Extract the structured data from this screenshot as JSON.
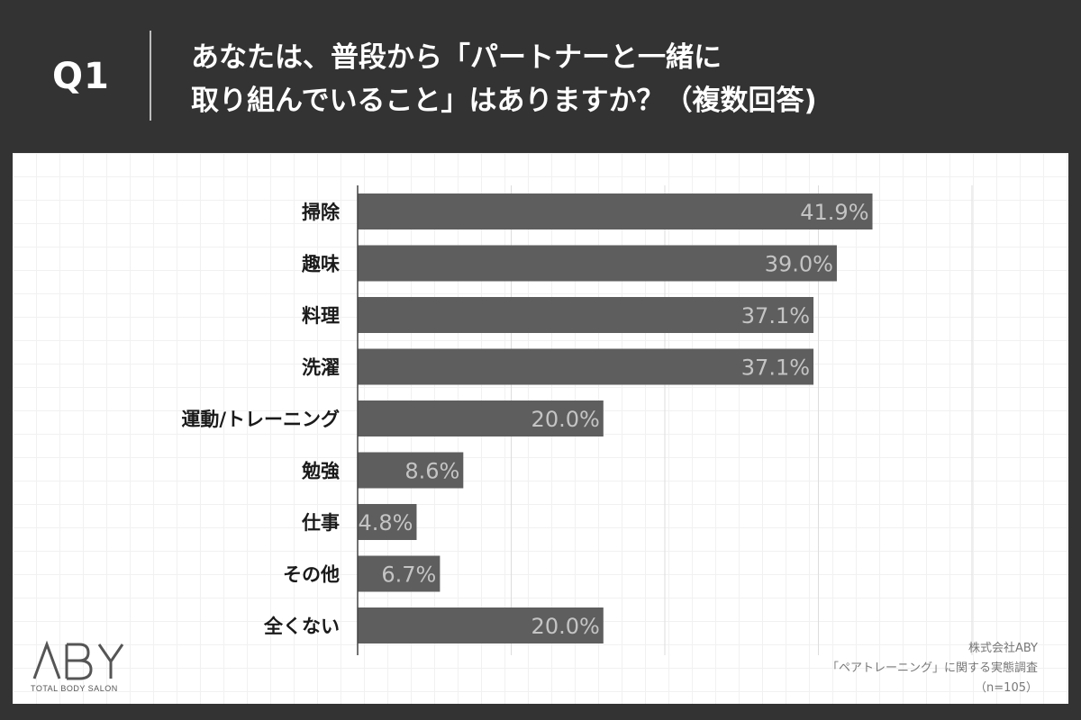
{
  "header": {
    "question_number": "Q1",
    "question_line1": "あなたは、普段から「パートナーと一緒に",
    "question_line2": "取り組んでいること」はありますか？（複数回答)"
  },
  "credit": {
    "company": "株式会社ABY",
    "survey": "「ペアトレーニング」に関する実態調査",
    "sample": "（n=105）"
  },
  "logo": {
    "text": "ABY",
    "subtitle": "TOTAL BODY SALON"
  },
  "colors": {
    "header_bg": "#333333",
    "bar": "#5e5e5e",
    "bar_label": "#c4c4c4",
    "category_text": "#1a1a1a"
  },
  "chart_data": {
    "type": "bar",
    "orientation": "horizontal",
    "categories": [
      "掃除",
      "趣味",
      "料理",
      "洗濯",
      "運動/トレーニング",
      "勉強",
      "仕事",
      "その他",
      "全くない"
    ],
    "values": [
      41.9,
      39.0,
      37.1,
      37.1,
      20.0,
      8.6,
      4.8,
      6.7,
      20.0
    ],
    "value_labels": [
      "41.9%",
      "39.0%",
      "37.1%",
      "37.1%",
      "20.0%",
      "8.6%",
      "4.8%",
      "6.7%",
      "20.0%"
    ],
    "xlim": [
      0,
      50
    ],
    "grid_x": [
      0,
      12.5,
      25,
      37.5,
      50
    ],
    "title": "",
    "xlabel": "",
    "ylabel": "",
    "legend": "none"
  }
}
